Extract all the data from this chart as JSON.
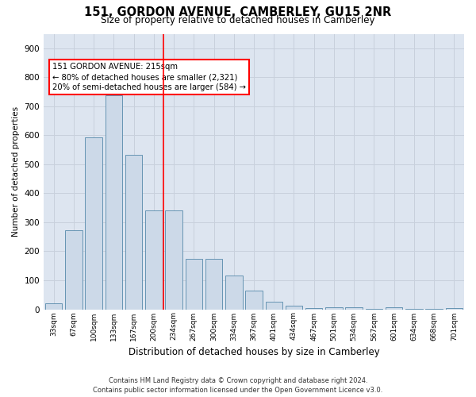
{
  "title": "151, GORDON AVENUE, CAMBERLEY, GU15 2NR",
  "subtitle": "Size of property relative to detached houses in Camberley",
  "xlabel": "Distribution of detached houses by size in Camberley",
  "ylabel": "Number of detached properties",
  "footnote": "Contains HM Land Registry data © Crown copyright and database right 2024.\nContains public sector information licensed under the Open Government Licence v3.0.",
  "bar_color": "#ccd9e8",
  "bar_edge_color": "#5588aa",
  "bins": [
    "33sqm",
    "67sqm",
    "100sqm",
    "133sqm",
    "167sqm",
    "200sqm",
    "234sqm",
    "267sqm",
    "300sqm",
    "334sqm",
    "367sqm",
    "401sqm",
    "434sqm",
    "467sqm",
    "501sqm",
    "534sqm",
    "567sqm",
    "601sqm",
    "634sqm",
    "668sqm",
    "701sqm"
  ],
  "values": [
    20,
    272,
    593,
    738,
    533,
    340,
    340,
    175,
    175,
    117,
    65,
    25,
    12,
    5,
    8,
    7,
    1,
    8,
    1,
    1,
    5
  ],
  "vline_pos": 5.5,
  "annotation_text": "151 GORDON AVENUE: 215sqm\n← 80% of detached houses are smaller (2,321)\n20% of semi-detached houses are larger (584) →",
  "ylim": [
    0,
    950
  ],
  "yticks": [
    0,
    100,
    200,
    300,
    400,
    500,
    600,
    700,
    800,
    900
  ],
  "grid_color": "#c8d0dc",
  "background_color": "#dde5f0"
}
